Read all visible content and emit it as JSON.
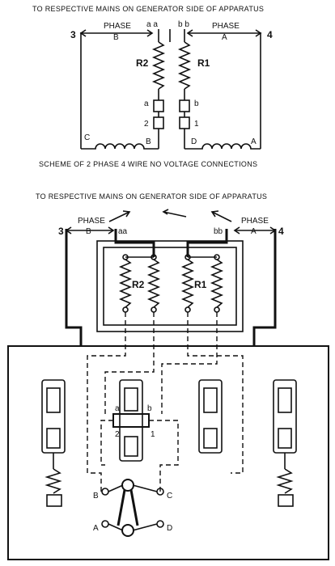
{
  "top_diagram": {
    "heading": "TO RESPECTIVE MAINS ON GENERATOR SIDE OF APPARATUS",
    "phase_b": {
      "label": "PHASE",
      "letter": "B"
    },
    "phase_a": {
      "label": "PHASE",
      "letter": "A"
    },
    "main_left": "3",
    "main_right": "4",
    "term_aa": "a a",
    "term_bb": "b b",
    "resistor_left": "R2",
    "resistor_right": "R1",
    "contact_a": "a",
    "contact_b": "b",
    "contact_2": "2",
    "contact_1": "1",
    "coil_c": "C",
    "coil_b": "B",
    "coil_d": "D",
    "coil_a": "A",
    "caption": "SCHEME OF 2 PHASE 4 WIRE  NO VOLTAGE CONNECTIONS"
  },
  "bottom_diagram": {
    "heading": "TO RESPECTIVE MAINS ON GENERATOR SIDE OF APPARATUS",
    "phase_b": {
      "label": "PHASE",
      "letter": "B"
    },
    "phase_a": {
      "label": "PHASE",
      "letter": "A"
    },
    "main_left": "3",
    "main_right": "4",
    "term_aa": "aa",
    "term_bb": "bb",
    "resistor_left": "R2",
    "resistor_right": "R1",
    "contact_a": "a",
    "contact_b": "b",
    "contact_2": "2",
    "contact_1": "1",
    "switch_b": "B",
    "switch_c": "C",
    "switch_a": "A",
    "switch_d": "D"
  }
}
